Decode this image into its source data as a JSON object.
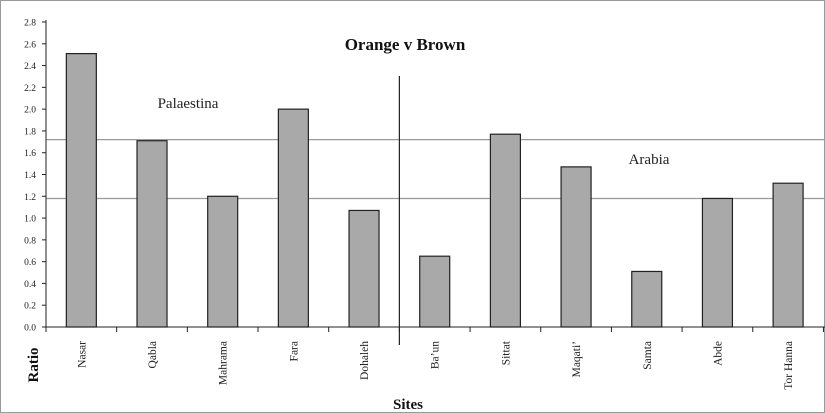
{
  "chart_data": {
    "type": "bar",
    "title": "Orange v Brown",
    "xlabel": "Sites",
    "ylabel": "Ratio",
    "categories": [
      "Nasar",
      "Qabla",
      "Mahrama",
      "Fara",
      "Dohaleh",
      "Ba’un",
      "Sittat",
      "Maqati’",
      "Samta",
      "Abde",
      "Tor Hanna"
    ],
    "values": [
      2.51,
      1.71,
      1.2,
      2.0,
      1.07,
      0.65,
      1.77,
      1.47,
      0.51,
      1.18,
      1.32
    ],
    "ylim": [
      0,
      2.8
    ],
    "yticks": [
      "0.0",
      "0.2",
      "0.4",
      "0.6",
      "0.8",
      "1.0",
      "1.2",
      "1.4",
      "1.6",
      "1.8",
      "2.0",
      "2.2",
      "2.4",
      "2.6",
      "2.8"
    ],
    "reference_lines": [
      1.72,
      1.18
    ],
    "annotations": [
      "Palaestina",
      "Arabia"
    ],
    "bar_color": "#a9a9a9",
    "bar_edge_color": "#222222",
    "grid": false,
    "legend": "none"
  }
}
